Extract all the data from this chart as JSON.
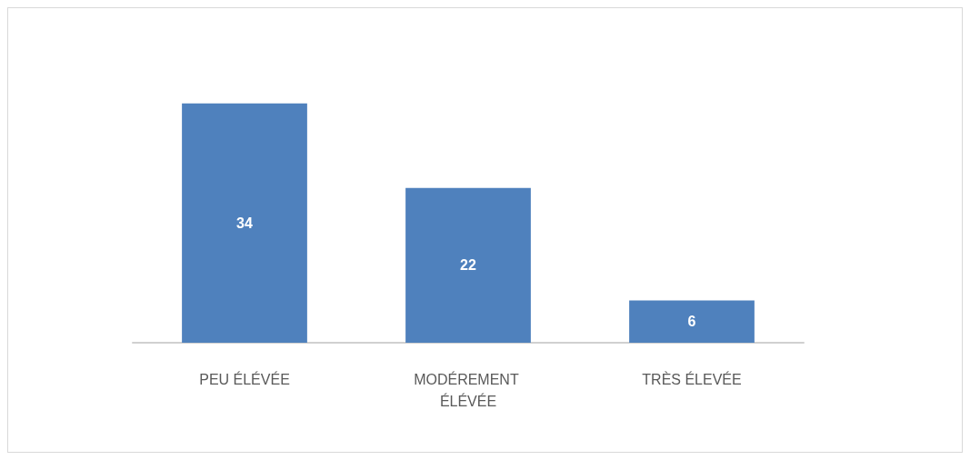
{
  "chart_data": {
    "type": "bar",
    "categories": [
      "PEU ÉLÉVÉE",
      "MODÉREMENT ÉLÉVÉE",
      "TRÈS ÉLEVÉE"
    ],
    "values": [
      34,
      22,
      6
    ],
    "color": "#4f81bd",
    "data_labels": true
  }
}
